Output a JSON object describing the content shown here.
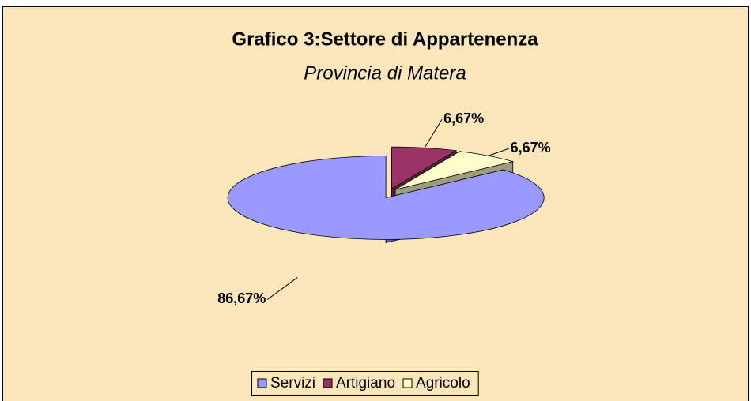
{
  "chart_data": {
    "type": "pie3d",
    "title": "Grafico 3:Settore di Appartenenza",
    "subtitle": "Provincia di Matera",
    "categories": [
      "Servizi",
      "Artigiano",
      "Agricolo"
    ],
    "values": [
      86.67,
      6.67,
      6.67
    ],
    "value_labels": [
      "86,67%",
      "6,67%",
      "6,67%"
    ],
    "colors": [
      "#9999ff",
      "#993366",
      "#ffffcc"
    ],
    "legend": "bottom"
  }
}
